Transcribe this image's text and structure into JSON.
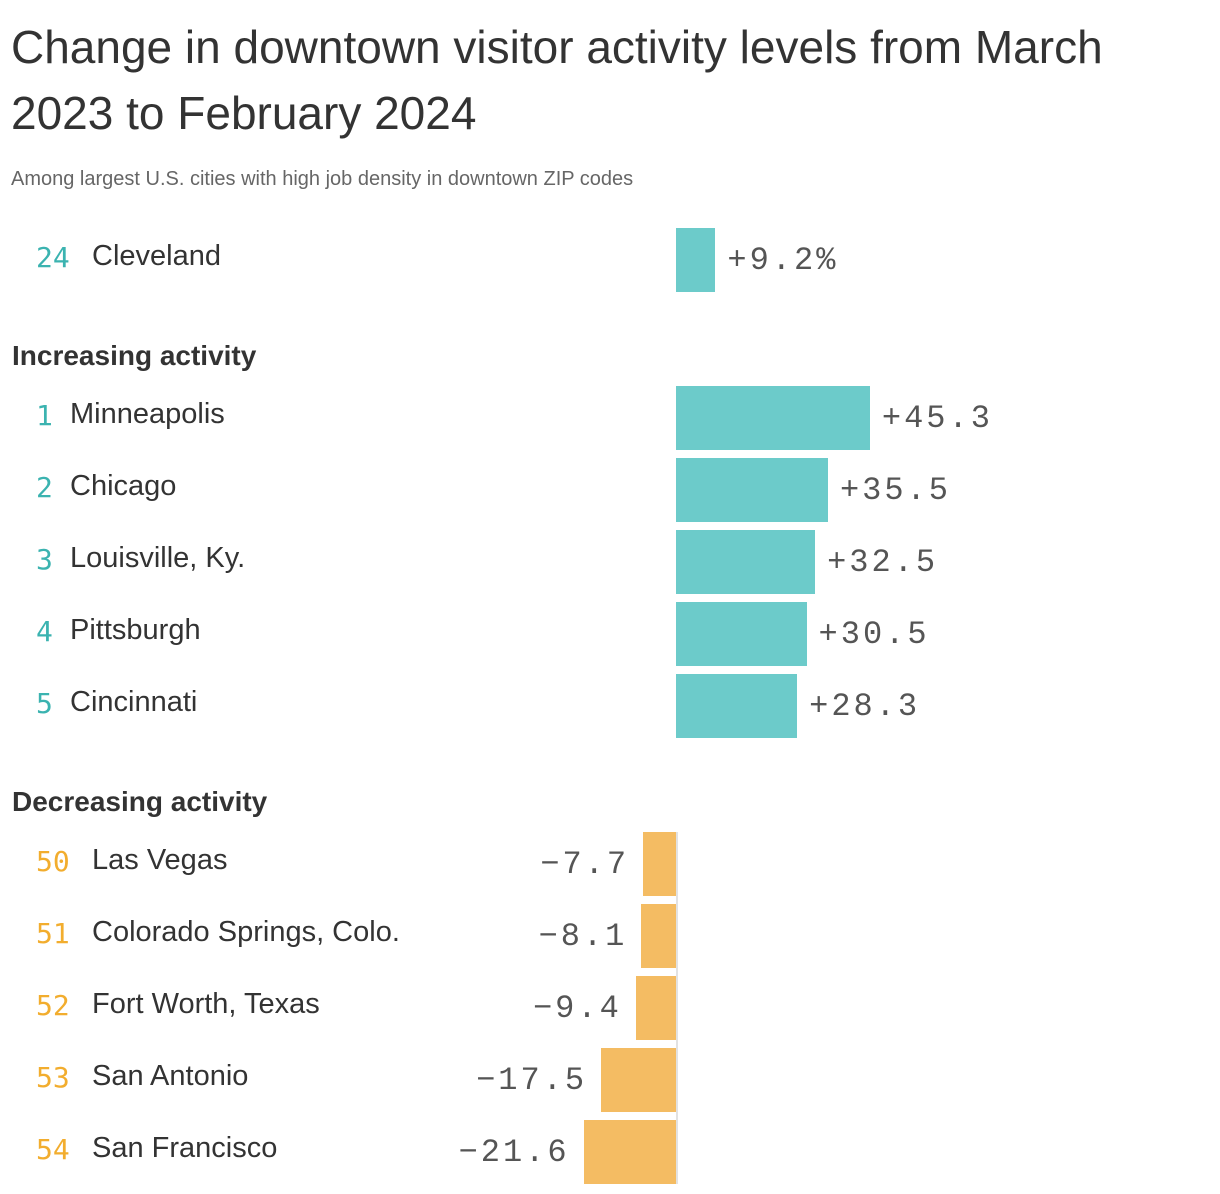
{
  "chart_data": {
    "type": "bar",
    "orientation": "horizontal",
    "title": "Change in downtown visitor activity levels from March 2023 to February 2024",
    "subtitle": "Among largest U.S. cities with high job density in downtown ZIP codes",
    "colors": {
      "positive_bar": "#6ccbca",
      "positive_rank": "#3bb3b0",
      "negative_bar": "#f4bc63",
      "negative_rank": "#f2ad2e"
    },
    "groups": [
      {
        "heading": "",
        "rows": [
          {
            "rank": "24",
            "city": "Cleveland",
            "value": 9.2,
            "label": "+9.2%"
          }
        ]
      },
      {
        "heading": "Increasing activity",
        "rows": [
          {
            "rank": "1",
            "city": "Minneapolis",
            "value": 45.3,
            "label": "+45.3"
          },
          {
            "rank": "2",
            "city": "Chicago",
            "value": 35.5,
            "label": "+35.5"
          },
          {
            "rank": "3",
            "city": "Louisville, Ky.",
            "value": 32.5,
            "label": "+32.5"
          },
          {
            "rank": "4",
            "city": "Pittsburgh",
            "value": 30.5,
            "label": "+30.5"
          },
          {
            "rank": "5",
            "city": "Cincinnati",
            "value": 28.3,
            "label": "+28.3"
          }
        ]
      },
      {
        "heading": "Decreasing activity",
        "rows": [
          {
            "rank": "50",
            "city": "Las Vegas",
            "value": -7.7,
            "label": "−7.7"
          },
          {
            "rank": "51",
            "city": "Colorado Springs, Colo.",
            "value": -8.1,
            "label": "−8.1"
          },
          {
            "rank": "52",
            "city": "Fort Worth, Texas",
            "value": -9.4,
            "label": "−9.4"
          },
          {
            "rank": "53",
            "city": "San Antonio",
            "value": -17.5,
            "label": "−17.5"
          },
          {
            "rank": "54",
            "city": "San Francisco",
            "value": -21.6,
            "label": "−21.6"
          }
        ]
      }
    ]
  }
}
